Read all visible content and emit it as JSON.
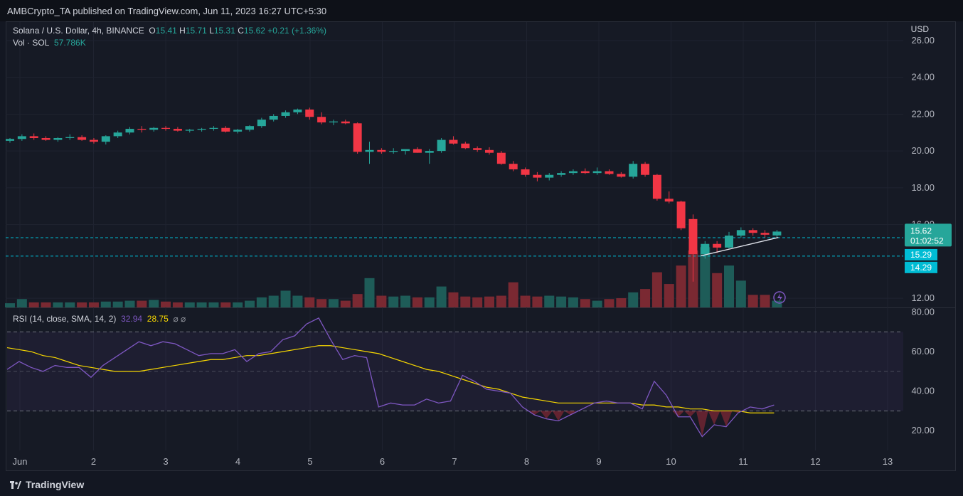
{
  "header": {
    "publisher_line": "AMBCrypto_TA published on TradingView.com, Jun 11, 2023 16:27 UTC+5:30"
  },
  "legend": {
    "symbol": "Solana / U.S. Dollar, 4h, BINANCE",
    "o_label": "O",
    "o": "15.41",
    "h_label": "H",
    "h": "15.71",
    "l_label": "L",
    "l": "15.31",
    "c_label": "C",
    "c": "15.62",
    "change": "+0.21 (+1.36%)",
    "vol_label": "Vol · SOL",
    "vol": "57.786K"
  },
  "rsi_legend": {
    "label": "RSI (14, close, SMA, 14, 2)",
    "rsi": "32.94",
    "sma": "28.75",
    "icons": "⌀ ⌀"
  },
  "price_axis": {
    "currency": "USD",
    "ticks": [
      "26.00",
      "24.00",
      "22.00",
      "20.00",
      "18.00",
      "16.00",
      "12.00"
    ]
  },
  "rsi_axis": {
    "ticks": [
      "80.00",
      "60.00",
      "40.00",
      "20.00"
    ]
  },
  "labels_right": {
    "last_price": "15.62",
    "countdown": "01:02:52",
    "level1": "15.29",
    "level2": "14.29"
  },
  "footer": {
    "brand": "TradingView"
  },
  "colors": {
    "up": "#26a69a",
    "down": "#f23645",
    "rsi": "#7e57c2",
    "sma": "#f7d700",
    "level": "#00bcd4"
  },
  "chart_data": {
    "type": "candlestick",
    "interval": "4h",
    "x_ticks": [
      "Jun",
      "2",
      "3",
      "4",
      "5",
      "6",
      "7",
      "8",
      "9",
      "10",
      "11",
      "12",
      "13"
    ],
    "ylim": [
      11.5,
      27
    ],
    "horizontal_levels": [
      15.29,
      14.29
    ],
    "candles": [
      [
        20.55,
        20.7,
        20.45,
        20.65
      ],
      [
        20.65,
        20.9,
        20.55,
        20.8
      ],
      [
        20.8,
        20.95,
        20.6,
        20.7
      ],
      [
        20.7,
        20.8,
        20.55,
        20.6
      ],
      [
        20.6,
        20.75,
        20.5,
        20.7
      ],
      [
        20.7,
        20.9,
        20.6,
        20.75
      ],
      [
        20.75,
        20.85,
        20.55,
        20.6
      ],
      [
        20.6,
        20.7,
        20.4,
        20.5
      ],
      [
        20.5,
        20.85,
        20.35,
        20.8
      ],
      [
        20.8,
        21.1,
        20.7,
        21.0
      ],
      [
        21.0,
        21.3,
        20.9,
        21.2
      ],
      [
        21.2,
        21.35,
        21.0,
        21.15
      ],
      [
        21.15,
        21.3,
        21.05,
        21.25
      ],
      [
        21.25,
        21.35,
        21.1,
        21.2
      ],
      [
        21.2,
        21.3,
        21.05,
        21.1
      ],
      [
        21.1,
        21.2,
        21.0,
        21.15
      ],
      [
        21.15,
        21.25,
        21.05,
        21.2
      ],
      [
        21.2,
        21.35,
        21.1,
        21.25
      ],
      [
        21.25,
        21.35,
        21.0,
        21.05
      ],
      [
        21.05,
        21.2,
        20.95,
        21.15
      ],
      [
        21.15,
        21.4,
        21.05,
        21.35
      ],
      [
        21.35,
        21.8,
        21.25,
        21.7
      ],
      [
        21.7,
        22.0,
        21.6,
        21.9
      ],
      [
        21.9,
        22.2,
        21.8,
        22.1
      ],
      [
        22.1,
        22.3,
        22.0,
        22.25
      ],
      [
        22.25,
        22.35,
        21.7,
        21.85
      ],
      [
        21.85,
        22.1,
        21.45,
        21.55
      ],
      [
        21.55,
        21.7,
        21.4,
        21.6
      ],
      [
        21.6,
        21.7,
        21.45,
        21.5
      ],
      [
        21.5,
        21.55,
        19.85,
        19.95
      ],
      [
        19.95,
        20.5,
        19.3,
        20.05
      ],
      [
        20.05,
        20.15,
        19.85,
        19.95
      ],
      [
        19.95,
        20.15,
        19.85,
        20.0
      ],
      [
        20.0,
        20.1,
        19.8,
        20.1
      ],
      [
        20.1,
        20.2,
        19.9,
        19.9
      ],
      [
        19.9,
        20.1,
        19.3,
        20.0
      ],
      [
        20.0,
        20.7,
        19.9,
        20.6
      ],
      [
        20.6,
        20.8,
        20.35,
        20.4
      ],
      [
        20.4,
        20.5,
        20.1,
        20.15
      ],
      [
        20.15,
        20.25,
        19.95,
        20.05
      ],
      [
        20.05,
        20.2,
        19.8,
        19.9
      ],
      [
        19.9,
        20.0,
        19.25,
        19.3
      ],
      [
        19.3,
        19.45,
        18.9,
        19.0
      ],
      [
        19.0,
        19.1,
        18.6,
        18.7
      ],
      [
        18.7,
        18.85,
        18.35,
        18.55
      ],
      [
        18.55,
        18.8,
        18.4,
        18.7
      ],
      [
        18.7,
        18.9,
        18.6,
        18.8
      ],
      [
        18.8,
        19.0,
        18.7,
        18.9
      ],
      [
        18.9,
        19.05,
        18.75,
        18.8
      ],
      [
        18.8,
        19.1,
        18.7,
        18.9
      ],
      [
        18.9,
        19.0,
        18.7,
        18.75
      ],
      [
        18.75,
        18.85,
        18.55,
        18.6
      ],
      [
        18.6,
        19.45,
        18.5,
        19.3
      ],
      [
        19.3,
        19.4,
        18.6,
        18.7
      ],
      [
        18.7,
        18.75,
        17.3,
        17.4
      ],
      [
        17.4,
        17.8,
        17.15,
        17.25
      ],
      [
        17.25,
        17.3,
        15.7,
        15.8
      ],
      [
        16.3,
        16.55,
        12.9,
        14.4
      ],
      [
        14.4,
        15.1,
        14.15,
        14.95
      ],
      [
        14.95,
        15.1,
        14.45,
        14.75
      ],
      [
        14.75,
        15.6,
        14.7,
        15.4
      ],
      [
        15.4,
        15.85,
        15.3,
        15.7
      ],
      [
        15.7,
        15.8,
        15.4,
        15.55
      ],
      [
        15.55,
        15.7,
        15.3,
        15.45
      ],
      [
        15.41,
        15.71,
        15.31,
        15.62
      ]
    ],
    "volume": [
      0.5,
      1.0,
      0.6,
      0.6,
      0.6,
      0.6,
      0.6,
      0.6,
      0.7,
      0.7,
      0.8,
      0.8,
      0.9,
      0.7,
      0.6,
      0.6,
      0.6,
      0.6,
      0.6,
      0.6,
      0.8,
      1.2,
      1.4,
      2.0,
      1.4,
      1.2,
      1.0,
      1.0,
      0.8,
      1.6,
      3.5,
      1.4,
      1.3,
      1.4,
      1.2,
      1.2,
      2.5,
      1.8,
      1.3,
      1.2,
      1.3,
      1.4,
      3.0,
      1.4,
      1.3,
      1.4,
      1.3,
      1.2,
      1.0,
      0.8,
      1.0,
      1.1,
      1.8,
      2.2,
      4.2,
      2.8,
      5.0,
      6.8,
      7.2,
      4.1,
      5.0,
      3.2,
      1.5,
      1.5,
      0.8
    ],
    "rsi_ylim": [
      10,
      82
    ],
    "rsi_bands": {
      "upper": 70,
      "middle": 50,
      "lower": 30
    },
    "rsi": [
      51,
      55,
      52,
      50,
      53,
      52,
      52,
      47,
      53,
      57,
      61,
      65,
      63,
      65,
      64,
      61,
      58,
      59,
      59,
      61,
      55,
      59,
      60,
      66,
      68,
      74,
      77,
      66,
      56,
      58,
      57,
      32,
      34,
      33,
      33,
      36,
      34,
      35,
      48,
      45,
      41,
      40,
      39,
      32,
      28,
      26,
      25,
      28,
      31,
      34,
      35,
      34,
      34,
      31,
      45,
      38,
      27,
      27,
      17,
      23,
      22,
      29,
      32,
      31,
      33
    ],
    "rsi_sma": [
      62,
      61,
      60,
      58,
      57,
      55,
      53,
      52,
      51,
      50,
      50,
      50,
      51,
      52,
      53,
      54,
      55,
      56,
      56,
      57,
      58,
      58,
      59,
      60,
      61,
      62,
      63,
      63,
      62,
      61,
      60,
      59,
      57,
      55,
      53,
      51,
      50,
      48,
      46,
      44,
      42,
      41,
      39,
      37,
      36,
      35,
      34,
      34,
      34,
      34,
      34,
      34,
      34,
      33,
      33,
      32,
      32,
      31,
      31,
      30,
      30,
      30,
      29,
      29,
      29
    ]
  }
}
